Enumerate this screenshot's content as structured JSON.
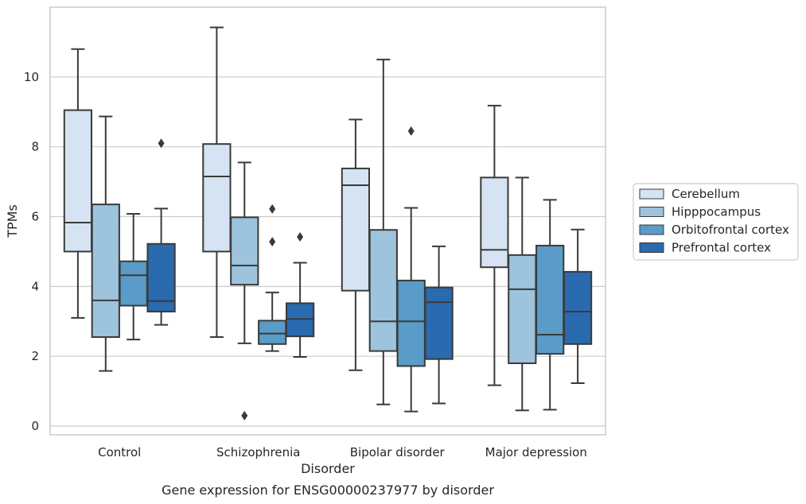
{
  "chart_data": {
    "type": "box",
    "caption": "Gene expression for ENSG00000237977 by disorder",
    "xlabel": "Disorder",
    "ylabel": "TPMs",
    "ylim": [
      -0.25,
      12
    ],
    "yticks": [
      0,
      2,
      4,
      6,
      8,
      10
    ],
    "grid": "y",
    "legend_position": "right-outside",
    "categories": [
      "Control",
      "Schizophrenia",
      "Bipolar disorder",
      "Major depression"
    ],
    "series": [
      {
        "name": "Cerebellum",
        "color": "#d5e3f2",
        "boxes": [
          {
            "whisker_low": 3.1,
            "q1": 5.0,
            "median": 5.83,
            "q3": 9.05,
            "whisker_high": 10.8,
            "outliers": []
          },
          {
            "whisker_low": 2.55,
            "q1": 5.0,
            "median": 7.15,
            "q3": 8.08,
            "whisker_high": 11.42,
            "outliers": []
          },
          {
            "whisker_low": 1.6,
            "q1": 3.88,
            "median": 6.9,
            "q3": 7.38,
            "whisker_high": 8.78,
            "outliers": []
          },
          {
            "whisker_low": 1.17,
            "q1": 4.55,
            "median": 5.05,
            "q3": 7.12,
            "whisker_high": 9.18,
            "outliers": []
          }
        ]
      },
      {
        "name": "Hipppocampus",
        "color": "#9dc3dd",
        "boxes": [
          {
            "whisker_low": 1.58,
            "q1": 2.55,
            "median": 3.6,
            "q3": 6.35,
            "whisker_high": 8.87,
            "outliers": []
          },
          {
            "whisker_low": 2.37,
            "q1": 4.05,
            "median": 4.6,
            "q3": 5.98,
            "whisker_high": 7.55,
            "outliers": [
              0.3
            ]
          },
          {
            "whisker_low": 0.62,
            "q1": 2.15,
            "median": 3.0,
            "q3": 5.62,
            "whisker_high": 10.5,
            "outliers": []
          },
          {
            "whisker_low": 0.45,
            "q1": 1.8,
            "median": 3.92,
            "q3": 4.9,
            "whisker_high": 7.12,
            "outliers": []
          }
        ]
      },
      {
        "name": "Orbitofrontal cortex",
        "color": "#5a9bc8",
        "boxes": [
          {
            "whisker_low": 2.48,
            "q1": 3.45,
            "median": 4.32,
            "q3": 4.72,
            "whisker_high": 6.08,
            "outliers": []
          },
          {
            "whisker_low": 2.15,
            "q1": 2.35,
            "median": 2.65,
            "q3": 3.02,
            "whisker_high": 3.83,
            "outliers": [
              5.28,
              6.22
            ]
          },
          {
            "whisker_low": 0.42,
            "q1": 1.72,
            "median": 3.0,
            "q3": 4.17,
            "whisker_high": 6.25,
            "outliers": [
              8.45
            ]
          },
          {
            "whisker_low": 0.47,
            "q1": 2.07,
            "median": 2.62,
            "q3": 5.17,
            "whisker_high": 6.48,
            "outliers": []
          }
        ]
      },
      {
        "name": "Prefrontal cortex",
        "color": "#2a6aaf",
        "boxes": [
          {
            "whisker_low": 2.9,
            "q1": 3.28,
            "median": 3.58,
            "q3": 5.22,
            "whisker_high": 6.23,
            "outliers": [
              8.1
            ]
          },
          {
            "whisker_low": 1.98,
            "q1": 2.57,
            "median": 3.07,
            "q3": 3.52,
            "whisker_high": 4.68,
            "outliers": [
              5.42
            ]
          },
          {
            "whisker_low": 0.65,
            "q1": 1.92,
            "median": 3.55,
            "q3": 3.97,
            "whisker_high": 5.15,
            "outliers": []
          },
          {
            "whisker_low": 1.23,
            "q1": 2.35,
            "median": 3.28,
            "q3": 4.42,
            "whisker_high": 5.63,
            "outliers": []
          }
        ]
      }
    ]
  }
}
